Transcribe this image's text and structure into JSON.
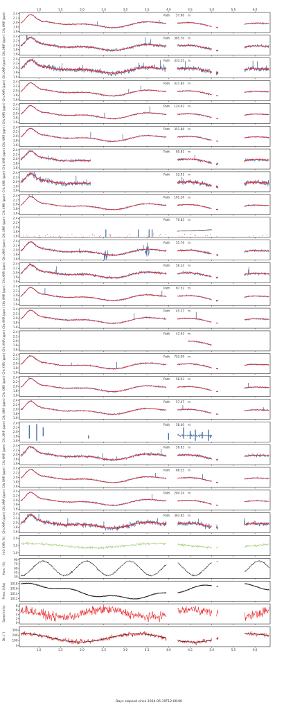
{
  "figure": {
    "xlabel": "Days elapsed since 2024-05-19T12:00:00",
    "xticks": [
      1.0,
      1.5,
      2.0,
      2.5,
      3.0,
      3.5,
      4.0,
      4.5,
      5.0,
      5.5,
      6.0
    ],
    "xtick_labels": [
      "1.0",
      "1.5",
      "2.0",
      "2.5",
      "3.0",
      "3.5",
      "4.0",
      "4.5",
      "5.0",
      "5.5",
      "6.0"
    ],
    "xlim": [
      0.55,
      6.35
    ],
    "colors": {
      "raw": "#4a6fa5",
      "smooth": "#e8262b",
      "meteo": "#222222",
      "h2o": "#9cc86b",
      "wind": "#e8262b"
    }
  },
  "chart_data": {
    "type": "line",
    "gaps": [
      [
        3.95,
        4.2
      ],
      [
        5.0,
        5.1
      ],
      [
        5.15,
        5.75
      ]
    ],
    "ch4_panels": [
      {
        "path_label": "Path",
        "path_value": "57.90",
        "path_unit": "m",
        "ylabel": "CH₄ XMR (ppm)",
        "yticks": [
          "2.4",
          "2.2",
          "2.0",
          "1.8",
          "1.6"
        ],
        "ylim": [
          1.55,
          2.45
        ],
        "noise": "low",
        "coverage": "full"
      },
      {
        "path_label": "Path",
        "path_value": "385.70",
        "path_unit": "m",
        "ylabel": "CH₄ XMR (ppm)",
        "yticks": [
          "2.4",
          "2.2",
          "2.0",
          "1.8",
          "1.6"
        ],
        "ylim": [
          1.55,
          2.45
        ],
        "noise": "medium",
        "coverage": "full"
      },
      {
        "path_label": "Path",
        "path_value": "433.25",
        "path_unit": "m",
        "ylabel": "CH₄ XMR (ppm)",
        "yticks": [
          "2.4",
          "2.2",
          "2.0",
          "1.8",
          "1.6"
        ],
        "ylim": [
          1.55,
          2.45
        ],
        "noise": "high",
        "coverage": "full"
      },
      {
        "path_label": "Path",
        "path_value": "421.84",
        "path_unit": "m",
        "ylabel": "CH₄ XMR (ppm)",
        "yticks": [
          "2.4",
          "2.2",
          "2.0",
          "1.8",
          "1.6"
        ],
        "ylim": [
          1.55,
          2.45
        ],
        "noise": "low",
        "coverage": "full"
      },
      {
        "path_label": "Path",
        "path_value": "124.03",
        "path_unit": "m",
        "ylabel": "CH₄ XMR (ppm)",
        "yticks": [
          "2.4",
          "2.2",
          "2.0",
          "1.8",
          "1.6"
        ],
        "ylim": [
          1.55,
          2.45
        ],
        "noise": "low",
        "coverage": "full"
      },
      {
        "path_label": "Path",
        "path_value": "351.88",
        "path_unit": "m",
        "ylabel": "CH₄ XMR (ppm)",
        "yticks": [
          "2.4",
          "2.2",
          "2.0",
          "1.8",
          "1.6"
        ],
        "ylim": [
          1.55,
          2.45
        ],
        "noise": "low",
        "coverage": "full"
      },
      {
        "path_label": "Path",
        "path_value": "85.81",
        "path_unit": "m",
        "ylabel": "CH₄ XMR (ppm)",
        "yticks": [
          "2.4",
          "2.2",
          "2.0",
          "1.8",
          "1.6"
        ],
        "ylim": [
          1.55,
          2.45
        ],
        "noise": "medium",
        "coverage": "partial"
      },
      {
        "path_label": "Path",
        "path_value": "52.91",
        "path_unit": "m",
        "ylabel": "CH₄ XMR (ppm)",
        "yticks": [
          "2.4",
          "2.2",
          "2.0",
          "1.8",
          "1.6"
        ],
        "ylim": [
          1.55,
          2.45
        ],
        "noise": "high",
        "coverage": "partial"
      },
      {
        "path_label": "Path",
        "path_value": "101.24",
        "path_unit": "m",
        "ylabel": "CH₄ XMR (ppm)",
        "yticks": [
          "2.4",
          "2.2",
          "2.0",
          "1.8",
          "1.6"
        ],
        "ylim": [
          1.55,
          2.45
        ],
        "noise": "low",
        "coverage": "full"
      },
      {
        "path_label": "Path",
        "path_value": "70.83",
        "path_unit": "m",
        "ylabel": "CH₄ XMR (ppm)",
        "yticks": [
          "2.4",
          "2.2",
          "2.0",
          "1.8",
          "1.6"
        ],
        "ylim": [
          1.55,
          2.45
        ],
        "noise": "sparse",
        "coverage": "sparse"
      },
      {
        "path_label": "Path",
        "path_value": "55.76",
        "path_unit": "m",
        "ylabel": "CH₄ XMR (ppm)",
        "yticks": [
          "2.4",
          "2.2",
          "2.0",
          "1.8",
          "1.6"
        ],
        "ylim": [
          1.55,
          2.45
        ],
        "noise": "spiky",
        "coverage": "full"
      },
      {
        "path_label": "Path",
        "path_value": "56.24",
        "path_unit": "m",
        "ylabel": "CH₄ XMR (ppm)",
        "yticks": [
          "2.4",
          "2.2",
          "2.0",
          "1.8",
          "1.6"
        ],
        "ylim": [
          1.55,
          2.45
        ],
        "noise": "medium",
        "coverage": "full"
      },
      {
        "path_label": "Path",
        "path_value": "67.52",
        "path_unit": "m",
        "ylabel": "CH₄ XMR (ppm)",
        "yticks": [
          "2.4",
          "2.2",
          "2.0",
          "1.8",
          "1.6"
        ],
        "ylim": [
          1.55,
          2.45
        ],
        "noise": "low",
        "coverage": "full"
      },
      {
        "path_label": "Path",
        "path_value": "45.27",
        "path_unit": "m",
        "ylabel": "CH₄ XMR (ppm)",
        "yticks": [
          "2.4",
          "2.2",
          "2.0",
          "1.8",
          "1.6"
        ],
        "ylim": [
          1.55,
          2.45
        ],
        "noise": "low",
        "coverage": "full"
      },
      {
        "path_label": "Path",
        "path_value": "42.93",
        "path_unit": "m",
        "ylabel": "CH₄ XMR (ppm)",
        "yticks": [
          "2.4",
          "2.2",
          "2.0",
          "1.8",
          "1.6"
        ],
        "ylim": [
          1.55,
          2.45
        ],
        "noise": "low",
        "coverage": "late"
      },
      {
        "path_label": "Path",
        "path_value": "752.09",
        "path_unit": "m",
        "ylabel": "CH₄ XMR (ppm)",
        "yticks": [
          "2.4",
          "2.2",
          "2.0",
          "1.8",
          "1.6"
        ],
        "ylim": [
          1.55,
          2.45
        ],
        "noise": "low",
        "coverage": "full"
      },
      {
        "path_label": "Path",
        "path_value": "58.93",
        "path_unit": "m",
        "ylabel": "CH₄ XMR (ppm)",
        "yticks": [
          "2.4",
          "2.2",
          "2.0",
          "1.8",
          "1.6"
        ],
        "ylim": [
          1.55,
          2.45
        ],
        "noise": "low",
        "coverage": "full"
      },
      {
        "path_label": "Path",
        "path_value": "57.47",
        "path_unit": "m",
        "ylabel": "CH₄ XMR (ppm)",
        "yticks": [
          "2.4",
          "2.2",
          "2.0",
          "1.8",
          "1.6"
        ],
        "ylim": [
          1.55,
          2.45
        ],
        "noise": "low",
        "coverage": "full"
      },
      {
        "path_label": "Path",
        "path_value": "58.40",
        "path_unit": "m",
        "ylabel": "CH₄ XMR (ppm)",
        "yticks": [
          "2.4",
          "2.2",
          "2.0",
          "1.8",
          "1.6"
        ],
        "ylim": [
          1.55,
          2.45
        ],
        "noise": "bars",
        "coverage": "sparse"
      },
      {
        "path_label": "Path",
        "path_value": "50.03",
        "path_unit": "m",
        "ylabel": "CH₄ XMR (ppm)",
        "yticks": [
          "2.4",
          "2.2",
          "2.0",
          "1.8",
          "1.6"
        ],
        "ylim": [
          1.55,
          2.45
        ],
        "noise": "medium",
        "coverage": "full"
      },
      {
        "path_label": "Path",
        "path_value": "88.25",
        "path_unit": "m",
        "ylabel": "CH₄ XMR (ppm)",
        "yticks": [
          "2.4",
          "2.2",
          "2.0",
          "1.8",
          "1.6"
        ],
        "ylim": [
          1.55,
          2.45
        ],
        "noise": "low",
        "coverage": "full"
      },
      {
        "path_label": "Path",
        "path_value": "204.24",
        "path_unit": "m",
        "ylabel": "CH₄ XMR (ppm)",
        "yticks": [
          "2.4",
          "2.2",
          "2.0",
          "1.8",
          "1.6"
        ],
        "ylim": [
          1.55,
          2.45
        ],
        "noise": "low",
        "coverage": "full"
      },
      {
        "path_label": "Path",
        "path_value": "363.85",
        "path_unit": "m",
        "ylabel": "CH₄ XMR (ppm)",
        "yticks": [
          "2.4",
          "2.2",
          "2.0",
          "1.8",
          "1.6"
        ],
        "ylim": [
          1.55,
          2.45
        ],
        "noise": "high",
        "coverage": "full"
      }
    ],
    "meteo_panels": [
      {
        "id": "h2o",
        "ylabel": "H₂O XMR (%)",
        "yticks": [
          "2.0",
          "1.5",
          "1.0"
        ],
        "ylim": [
          0.8,
          2.2
        ],
        "style": "h2o"
      },
      {
        "id": "rh",
        "ylabel": "Hum. (%)",
        "yticks": [
          "90",
          "75",
          "60",
          "45",
          "30"
        ],
        "ylim": [
          25,
          95
        ],
        "style": "rh"
      },
      {
        "id": "pressure",
        "ylabel": "Press. (hPa)",
        "yticks": [
          "1018",
          "1016",
          "1014",
          "1012"
        ],
        "ylim": [
          1011,
          1019
        ],
        "style": "pressure"
      },
      {
        "id": "wind",
        "ylabel": "Speed (m/s)",
        "yticks": [
          "8",
          "6",
          "4",
          "2",
          "0"
        ],
        "ylim": [
          -0.5,
          9
        ],
        "style": "wind"
      },
      {
        "id": "temp",
        "ylabel": "Dir. (°)",
        "yticks": [
          "300",
          "200",
          "100",
          "0"
        ],
        "ylim": [
          -20,
          370
        ],
        "style": "temp"
      }
    ]
  }
}
